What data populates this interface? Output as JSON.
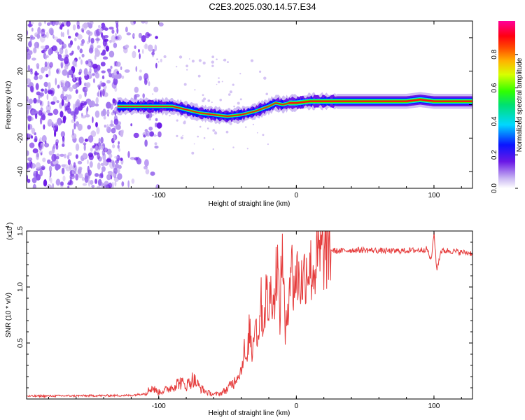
{
  "page_title": "C2E3.2025.030.14.57.E34",
  "colors": {
    "spectrogram_faint": "#cdb8f2",
    "spectrogram_mid": "#6a18e6",
    "snr_line": "#e53b3b"
  },
  "chart_data": [
    {
      "type": "heatmap",
      "title": "",
      "xlabel": "Height of straight line (km)",
      "ylabel": "Frequency (Hz)",
      "xlim": [
        -196,
        128
      ],
      "ylim": [
        -50,
        50
      ],
      "xticks": [
        -100,
        0,
        100
      ],
      "xtick_labels": [
        "-100",
        "0",
        "100"
      ],
      "yticks": [
        -40,
        -20,
        0,
        20,
        40
      ],
      "ytick_labels": [
        "-40",
        "-20",
        "0",
        "20",
        "40"
      ],
      "colorbar": {
        "label": "Normalized spectral amplitude",
        "range": [
          0,
          1
        ],
        "ticks": [
          0.0,
          0.2,
          0.4,
          0.6,
          0.8
        ],
        "tick_labels": [
          "0.0",
          "0.2",
          "0.4",
          "0.6",
          "0.8"
        ]
      },
      "ridge": {
        "x": [
          -130,
          -120,
          -110,
          -100,
          -90,
          -80,
          -70,
          -60,
          -50,
          -40,
          -30,
          -20,
          -15,
          -10,
          -5,
          0,
          10,
          20,
          40,
          60,
          80,
          90,
          100,
          110,
          128
        ],
        "freq": [
          -1,
          -1,
          -1,
          -1,
          -1,
          -3,
          -5,
          -6,
          -7,
          -6,
          -4,
          -1,
          1,
          0,
          1,
          1,
          2,
          2,
          2,
          2,
          2,
          3,
          2,
          2,
          2
        ]
      },
      "noise_region_x": [
        -196,
        -110
      ]
    },
    {
      "type": "line",
      "title": "",
      "xlabel": "Height of straight line (km)",
      "ylabel": "SNR (10 * v/v)",
      "multiplier_label": "(x10",
      "multiplier_exp": "4",
      "multiplier_close": ")",
      "xlim": [
        -196,
        128
      ],
      "ylim": [
        0,
        15000
      ],
      "xticks": [
        -100,
        0,
        100
      ],
      "xtick_labels": [
        "-100",
        "0",
        "100"
      ],
      "yticks": [
        5000,
        10000,
        15000
      ],
      "ytick_labels": [
        "0.5",
        "1.0",
        "1.5"
      ],
      "series": [
        {
          "x": [
            -196,
            -170,
            -140,
            -120,
            -110,
            -105,
            -100,
            -95,
            -90,
            -85,
            -80,
            -75,
            -70,
            -65,
            -60,
            -55,
            -50,
            -45,
            -40,
            -38,
            -36,
            -34,
            -32,
            -30,
            -28,
            -26,
            -24,
            -22,
            -20,
            -18,
            -16,
            -14,
            -12,
            -10,
            -8,
            -6,
            -4,
            -2,
            0,
            4,
            8,
            12,
            16,
            20,
            25,
            30,
            40,
            50,
            60,
            70,
            80,
            90,
            95,
            98,
            100,
            102,
            105,
            110,
            120,
            128
          ],
          "y": [
            250,
            280,
            300,
            320,
            500,
            1000,
            600,
            800,
            1100,
            1500,
            1200,
            1800,
            1000,
            600,
            400,
            500,
            900,
            1600,
            2600,
            4500,
            2900,
            6500,
            3800,
            8000,
            5000,
            9200,
            6400,
            9500,
            8000,
            10200,
            8400,
            12800,
            7200,
            14200,
            5000,
            9000,
            12600,
            9800,
            11200,
            10400,
            12000,
            11300,
            12600,
            13000,
            13300,
            13200,
            13300,
            13300,
            13250,
            13200,
            13250,
            13300,
            13400,
            12300,
            15000,
            11500,
            13200,
            13250,
            13100,
            13000
          ]
        }
      ]
    }
  ]
}
